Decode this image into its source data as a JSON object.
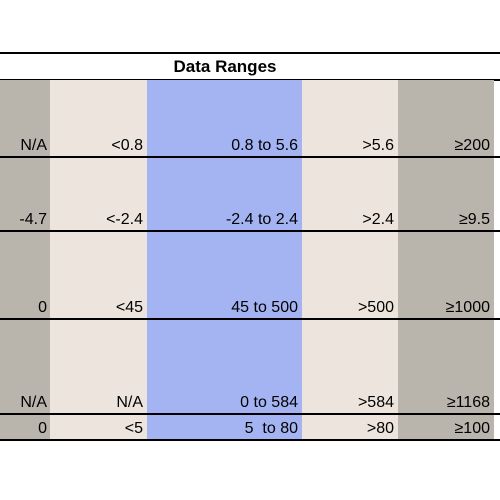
{
  "title": "Data Ranges",
  "colors": {
    "edge_columns": "#b9b4ac",
    "inner_columns": "#ede5dd",
    "highlight_column": "#a4b4f2",
    "rules": "#000000"
  },
  "rows": [
    [
      "N/A",
      "<0.8",
      "0.8 to 5.6",
      ">5.6",
      "≥200"
    ],
    [
      "-4.7",
      "<-2.4",
      "-2.4 to 2.4",
      ">2.4",
      "≥9.5"
    ],
    [
      "0",
      "<45",
      "45 to 500",
      ">500",
      "≥1000"
    ],
    [
      "N/A",
      "N/A",
      "0 to 584",
      ">584",
      "≥1168"
    ],
    [
      "0",
      "<5",
      "5  to 80",
      ">80",
      "≥100"
    ]
  ]
}
